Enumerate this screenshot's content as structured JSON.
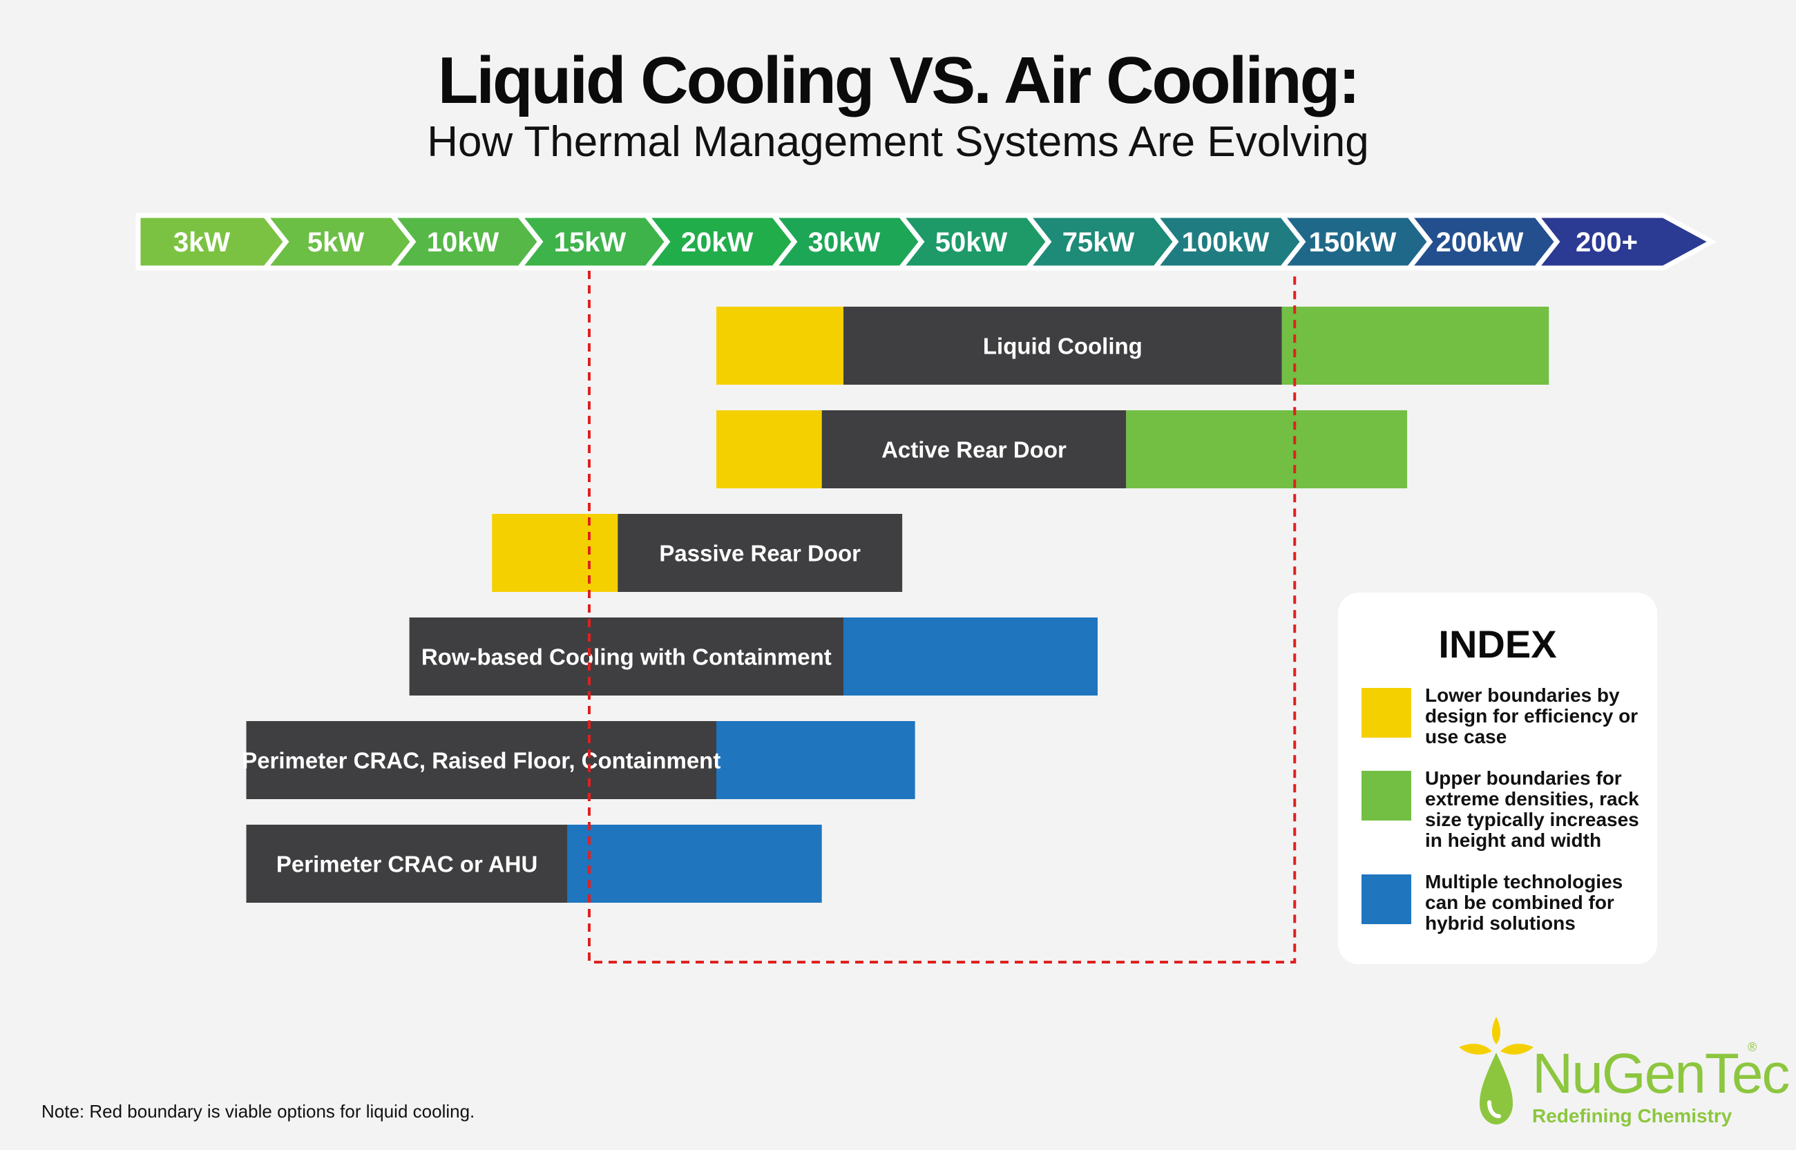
{
  "header": {
    "title": "Liquid Cooling VS. Air Cooling:",
    "subtitle": "How Thermal Management Systems Are Evolving"
  },
  "chart_data": {
    "type": "bar",
    "orientation": "horizontal",
    "scale": [
      "3kW",
      "5kW",
      "10kW",
      "15kW",
      "20kW",
      "30kW",
      "50kW",
      "75kW",
      "100kW",
      "150kW",
      "200kW",
      "200+"
    ],
    "scale_colors": [
      "#7cc242",
      "#6cbf45",
      "#55b847",
      "#3db34a",
      "#22ad4b",
      "#1ea657",
      "#1d9a68",
      "#1e8a78",
      "#1f7d82",
      "#20688a",
      "#234f8e",
      "#2b3a92"
    ],
    "series": [
      {
        "name": "Liquid Cooling",
        "lower_start": 20,
        "core_start": 30,
        "core_end": 120,
        "upper_end": 250,
        "upper_type": "green"
      },
      {
        "name": "Active Rear Door",
        "lower_start": 20,
        "core_start": 28,
        "core_end": 80,
        "upper_end": 170,
        "upper_type": "green"
      },
      {
        "name": "Passive Rear Door",
        "lower_start": 11,
        "core_start": 16,
        "core_end": 38
      },
      {
        "name": "Row-based Cooling with Containment",
        "core_start": 7.5,
        "core_end": 30,
        "upper_end": 75,
        "upper_type": "blue"
      },
      {
        "name": "Perimeter CRAC, Raised Floor, Containment",
        "core_start": 3.5,
        "core_end": 20,
        "upper_end": 40,
        "upper_type": "blue"
      },
      {
        "name": "Perimeter CRAC or AHU",
        "core_start": 3.5,
        "core_end": 14,
        "upper_end": 28,
        "upper_type": "blue"
      }
    ],
    "boundary": {
      "from_kW": 15,
      "to_kW": 125,
      "color": "#e02020"
    }
  },
  "colors": {
    "lower": "#f5d000",
    "core": "#3f3f41",
    "upper_green": "#72bf44",
    "upper_blue": "#1f75be",
    "boundary": "#e02020"
  },
  "legend": {
    "title": "INDEX",
    "items": [
      {
        "color": "#f5d000",
        "text": "Lower boundaries by design for efficiency or use case"
      },
      {
        "color": "#72bf44",
        "text": "Upper boundaries for extreme densities, rack size typically increases in height and width"
      },
      {
        "color": "#1f75be",
        "text": "Multiple technologies can be combined for hybrid solutions"
      }
    ]
  },
  "note": "Note: Red boundary is viable options for liquid cooling.",
  "logo": {
    "name": "NuGenTec",
    "registered": "®",
    "tagline": "Redefining Chemistry"
  }
}
